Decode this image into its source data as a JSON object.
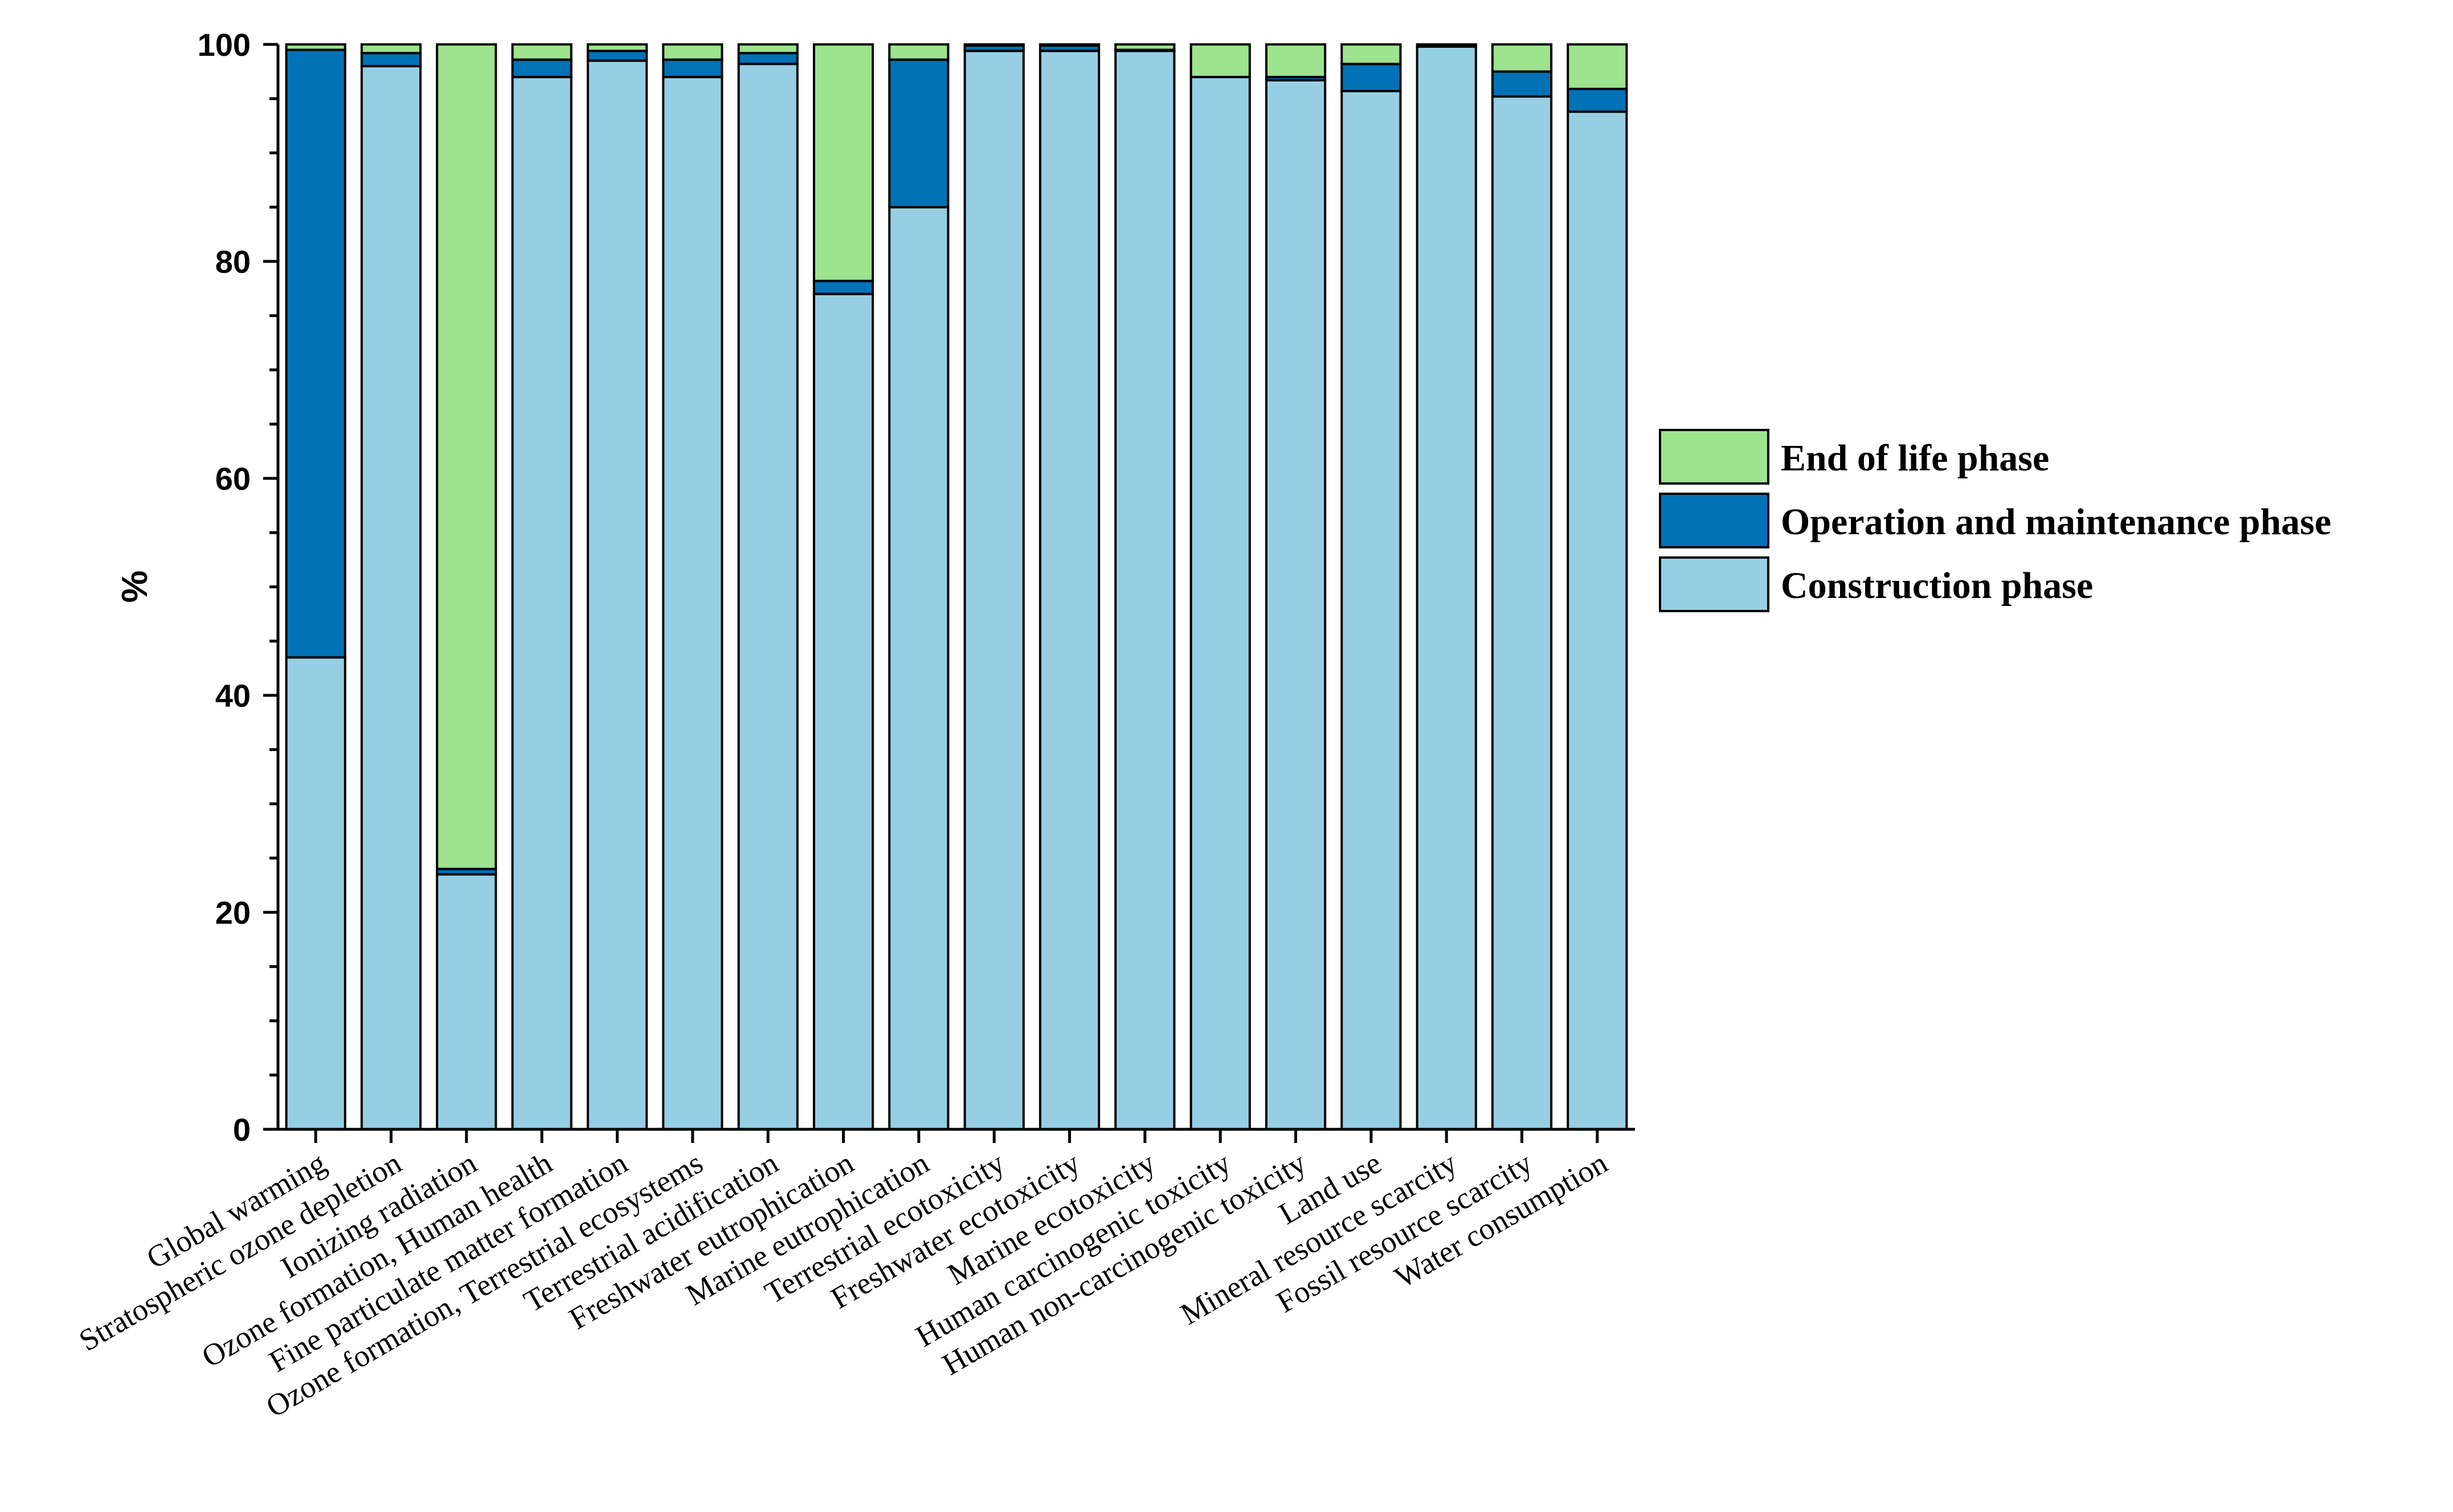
{
  "chart_data": {
    "type": "bar",
    "stacked": true,
    "title": "",
    "xlabel": "",
    "ylabel": "%",
    "ylim": [
      0,
      100
    ],
    "yticks": [
      0,
      20,
      40,
      60,
      80,
      100
    ],
    "legend_position": "right",
    "categories": [
      "Global warming",
      "Stratospheric ozone depletion",
      "Ionizing radiation",
      "Ozone formation, Human health",
      "Fine particulate matter formation",
      "Ozone formation, Terrestrial ecosystems",
      "Terrestrial acidification",
      "Freshwater eutrophication",
      "Marine eutrophication",
      "Terrestrial ecotoxicity",
      "Freshwater ecotoxicity",
      "Marine ecotoxicity",
      "Human carcinogenic toxicity",
      "Human non-carcinogenic toxicity",
      "Land use",
      "Mineral resource scarcity",
      "Fossil resource scarcity",
      "Water consumption"
    ],
    "series": [
      {
        "name": "Construction phase",
        "color": "#96cfe4",
        "values": [
          43.5,
          98.0,
          23.5,
          97.0,
          98.5,
          97.0,
          98.2,
          77.0,
          85.0,
          99.4,
          99.4,
          99.4,
          97.0,
          96.7,
          95.7,
          99.8,
          95.2,
          93.8
        ]
      },
      {
        "name": "Operation and maintenance phase",
        "color": "#0072b5",
        "values": [
          56.0,
          1.2,
          0.5,
          1.6,
          0.9,
          1.6,
          1.0,
          1.2,
          13.6,
          0.5,
          0.5,
          0.1,
          0.0,
          0.3,
          2.5,
          0.1,
          2.3,
          2.1
        ]
      },
      {
        "name": "End of life phase",
        "color": "#9ee38e",
        "values": [
          0.5,
          0.8,
          76.0,
          1.4,
          0.6,
          1.4,
          0.8,
          21.8,
          1.4,
          0.1,
          0.1,
          0.5,
          3.0,
          3.0,
          1.8,
          0.1,
          2.5,
          4.1
        ]
      }
    ],
    "legend": [
      "End of life phase",
      "Operation and maintenance phase",
      "Construction phase"
    ]
  }
}
